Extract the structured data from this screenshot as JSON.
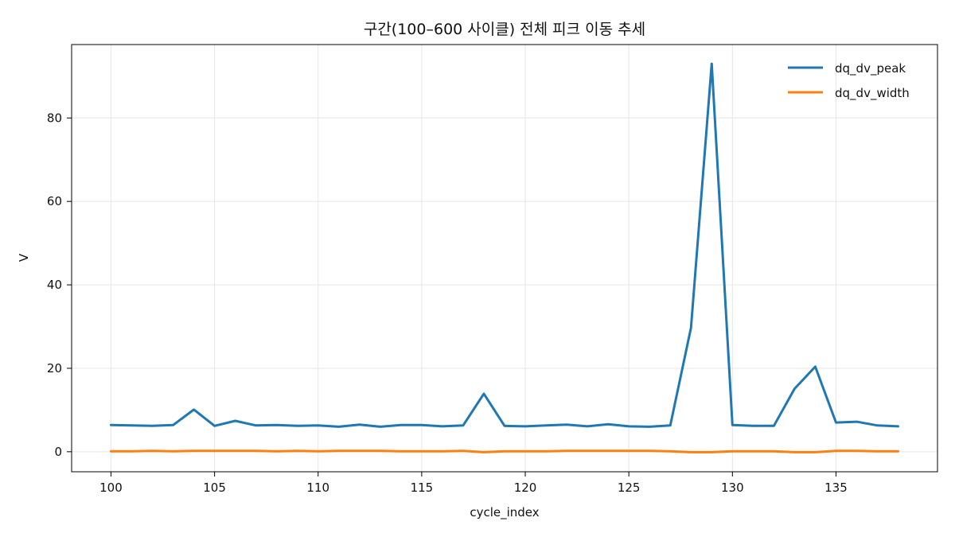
{
  "chart_data": {
    "type": "line",
    "title": "구간(100–600 사이클) 전체 피크 이동 추세",
    "xlabel": "cycle_index",
    "ylabel": "V",
    "xlim": [
      98.1,
      139.9
    ],
    "ylim": [
      -4.8,
      97.6
    ],
    "xticks": [
      100,
      105,
      110,
      115,
      120,
      125,
      130,
      135
    ],
    "yticks": [
      0,
      20,
      40,
      60,
      80
    ],
    "grid": true,
    "legend_position": "top-right",
    "x": [
      100,
      101,
      102,
      103,
      104,
      105,
      106,
      107,
      108,
      109,
      110,
      111,
      112,
      113,
      114,
      115,
      116,
      117,
      118,
      119,
      120,
      121,
      122,
      123,
      124,
      125,
      126,
      127,
      128,
      129,
      130,
      131,
      132,
      133,
      134,
      135,
      136,
      137,
      138
    ],
    "series": [
      {
        "name": "dq_dv_peak",
        "color": "#1f77b4",
        "values": [
          6.4,
          6.3,
          6.2,
          6.4,
          10.1,
          6.2,
          7.4,
          6.3,
          6.4,
          6.2,
          6.3,
          6.0,
          6.5,
          6.0,
          6.4,
          6.4,
          6.1,
          6.3,
          13.9,
          6.2,
          6.1,
          6.3,
          6.5,
          6.1,
          6.6,
          6.1,
          6.0,
          6.3,
          29.7,
          93.0,
          6.4,
          6.2,
          6.2,
          15.1,
          20.4,
          7.0,
          7.2,
          6.3,
          6.1
        ]
      },
      {
        "name": "dq_dv_width",
        "color": "#ff7f0e",
        "values": [
          0.1,
          0.1,
          0.2,
          0.1,
          0.2,
          0.2,
          0.2,
          0.2,
          0.1,
          0.2,
          0.1,
          0.2,
          0.2,
          0.2,
          0.1,
          0.1,
          0.1,
          0.2,
          -0.1,
          0.1,
          0.1,
          0.1,
          0.2,
          0.2,
          0.2,
          0.2,
          0.2,
          0.1,
          -0.1,
          -0.1,
          0.1,
          0.1,
          0.1,
          -0.1,
          -0.1,
          0.2,
          0.2,
          0.1,
          0.1
        ]
      }
    ]
  }
}
